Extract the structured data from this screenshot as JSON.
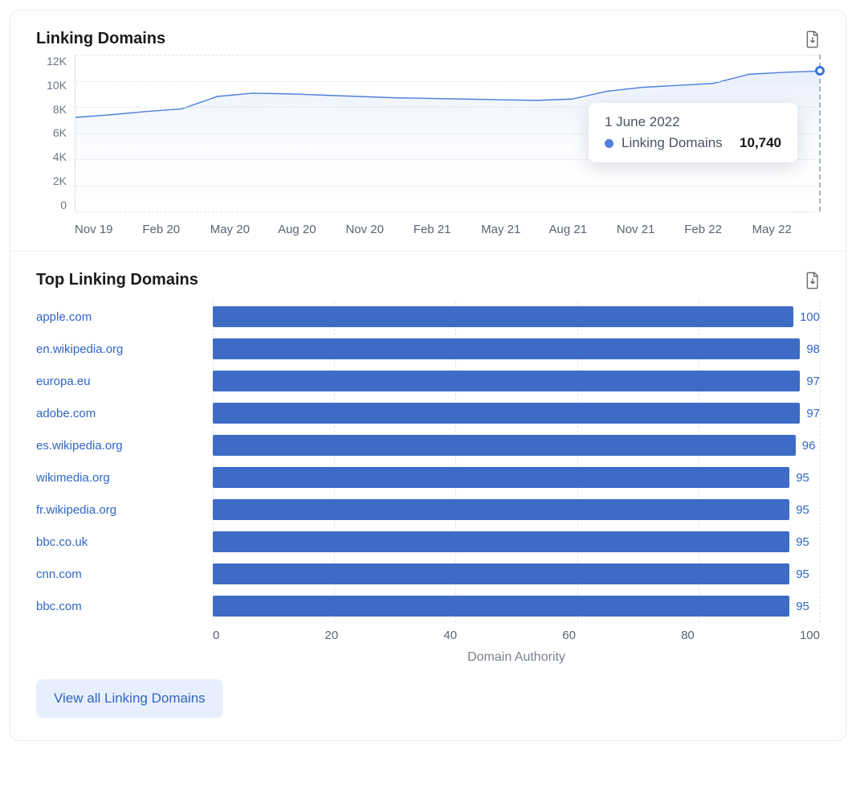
{
  "linking_chart": {
    "title": "Linking Domains",
    "type": "area-line",
    "y": {
      "min": 0,
      "max": 12000,
      "ticks": [
        "12K",
        "10K",
        "8K",
        "6K",
        "4K",
        "2K",
        "0"
      ]
    },
    "x_labels": [
      "Nov 19",
      "Feb 20",
      "May 20",
      "Aug 20",
      "Nov 20",
      "Feb 21",
      "May 21",
      "Aug 21",
      "Nov 21",
      "Feb 22",
      "May 22"
    ],
    "series_color": "#4f7fd9",
    "fill_top": "#e8effc",
    "fill_bottom": "#ffffff",
    "grid_color": "#dfe3e8",
    "values": [
      7200,
      7400,
      7650,
      7850,
      8800,
      9050,
      9000,
      8900,
      8800,
      8700,
      8650,
      8600,
      8550,
      8500,
      8600,
      9200,
      9500,
      9650,
      9800,
      10500,
      10650,
      10740
    ],
    "hover": {
      "date": "1 June 2022",
      "label": "Linking Domains",
      "value": "10,740",
      "index": 21
    }
  },
  "top_domains": {
    "title": "Top Linking Domains",
    "type": "hbar",
    "x_label": "Domain Authority",
    "x": {
      "min": 0,
      "max": 100,
      "ticks": [
        "0",
        "20",
        "40",
        "60",
        "80",
        "100"
      ]
    },
    "bar_color": "#3d6bc6",
    "value_color": "#2f66c4",
    "link_color": "#2f66c4",
    "grid_color": "#dfe3e8",
    "items": [
      {
        "domain": "apple.com",
        "value": 100
      },
      {
        "domain": "en.wikipedia.org",
        "value": 98
      },
      {
        "domain": "europa.eu",
        "value": 97
      },
      {
        "domain": "adobe.com",
        "value": 97
      },
      {
        "domain": "es.wikipedia.org",
        "value": 96
      },
      {
        "domain": "wikimedia.org",
        "value": 95
      },
      {
        "domain": "fr.wikipedia.org",
        "value": 95
      },
      {
        "domain": "bbc.co.uk",
        "value": 95
      },
      {
        "domain": "cnn.com",
        "value": 95
      },
      {
        "domain": "bbc.com",
        "value": 95
      }
    ]
  },
  "buttons": {
    "view_all": "View all Linking Domains"
  }
}
